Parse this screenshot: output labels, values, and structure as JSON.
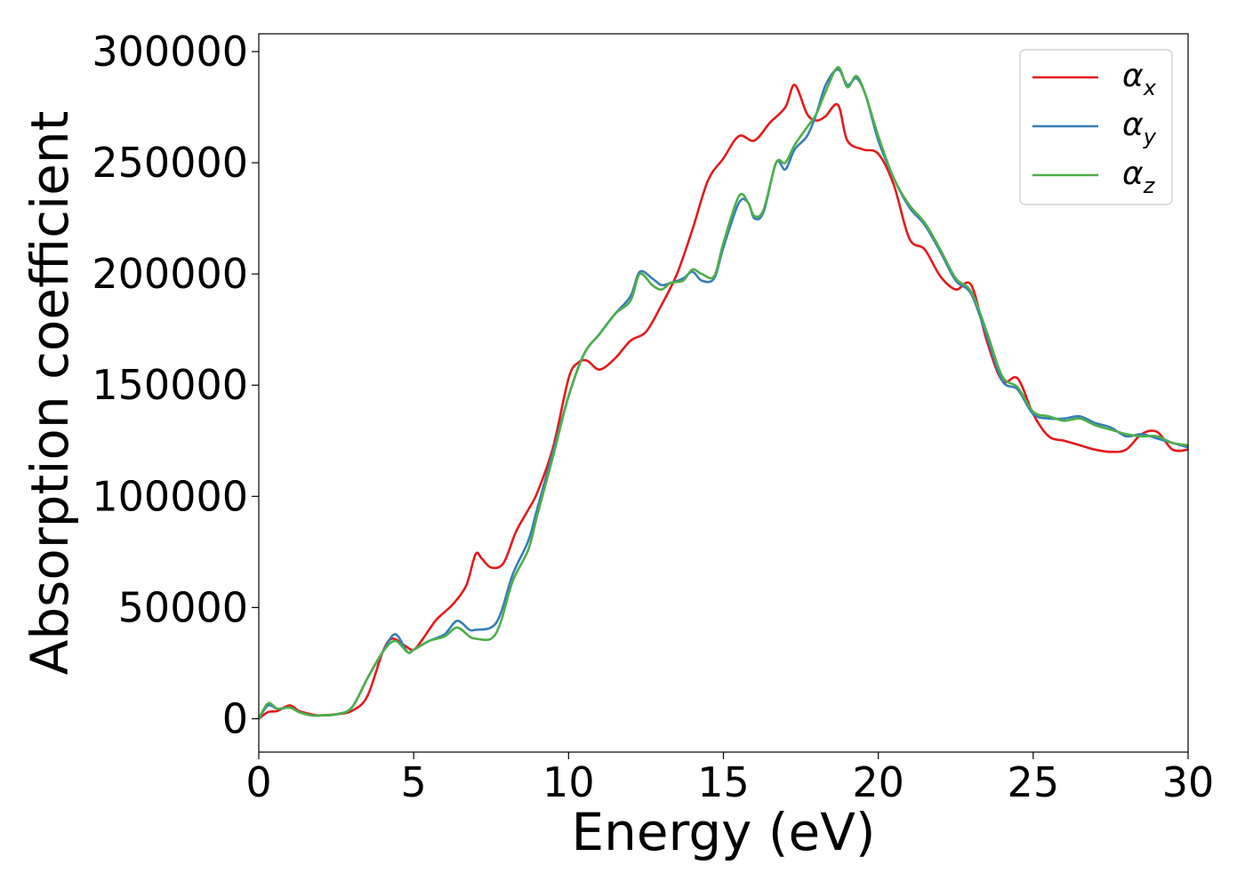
{
  "chart_data": {
    "type": "line",
    "xlabel": "Energy (eV)",
    "ylabel": "Absorption coefficient",
    "xlim": [
      0,
      30
    ],
    "ylim": [
      -15000,
      308000
    ],
    "xticks": [
      0,
      5,
      10,
      15,
      20,
      25,
      30
    ],
    "yticks": [
      0,
      50000,
      100000,
      150000,
      200000,
      250000,
      300000
    ],
    "grid": false,
    "legend_position": "top-right",
    "series": [
      {
        "name": "α",
        "subscript": "x",
        "color": "#e41a1c",
        "x": [
          0,
          0.3,
          0.6,
          1,
          1.3,
          1.7,
          2,
          2.5,
          3,
          3.5,
          4,
          4.3,
          4.7,
          5,
          5.3,
          5.7,
          6,
          6.3,
          6.7,
          7,
          7.2,
          7.5,
          7.9,
          8.3,
          8.7,
          9,
          9.5,
          10,
          10.3,
          10.6,
          11,
          11.5,
          12,
          12.5,
          13,
          13.5,
          14,
          14.5,
          15,
          15.5,
          16,
          16.5,
          17,
          17.3,
          17.7,
          18,
          18.3,
          18.7,
          19,
          19.5,
          20,
          20.5,
          21,
          21.5,
          22,
          22.5,
          23,
          23.5,
          24,
          24.5,
          25,
          25.5,
          26,
          26.5,
          27,
          27.5,
          28,
          28.5,
          29,
          29.5,
          30
        ],
        "y": [
          0,
          3000,
          3500,
          6000,
          3500,
          2000,
          1500,
          2000,
          3500,
          10000,
          30000,
          36000,
          33000,
          31000,
          36000,
          44000,
          48000,
          52000,
          60000,
          74000,
          72000,
          68000,
          70000,
          84000,
          94000,
          102000,
          122000,
          153000,
          160000,
          161000,
          157000,
          162000,
          170000,
          174000,
          186000,
          200000,
          220000,
          242000,
          252000,
          262000,
          260000,
          268000,
          275000,
          285000,
          272000,
          269000,
          271000,
          276000,
          260000,
          256000,
          254000,
          240000,
          216000,
          211000,
          199000,
          193000,
          195000,
          170000,
          152000,
          153000,
          137000,
          127000,
          125000,
          123000,
          121000,
          120000,
          121000,
          128000,
          129000,
          121000,
          121000
        ]
      },
      {
        "name": "α",
        "subscript": "y",
        "color": "#377eb8",
        "x": [
          0,
          0.3,
          0.6,
          1,
          1.3,
          1.7,
          2,
          2.5,
          3,
          3.5,
          4,
          4.4,
          4.8,
          5,
          5.5,
          6,
          6.4,
          6.8,
          7,
          7.5,
          7.8,
          8.2,
          8.7,
          9,
          9.5,
          10,
          10.5,
          11,
          11.5,
          12,
          12.3,
          12.7,
          13,
          13.3,
          13.7,
          14,
          14.3,
          14.7,
          15,
          15.5,
          15.8,
          16,
          16.3,
          16.7,
          17,
          17.3,
          17.7,
          18,
          18.3,
          18.7,
          19,
          19.3,
          19.6,
          20,
          20.5,
          21,
          21.5,
          22,
          22.5,
          23,
          23.5,
          24,
          24.5,
          25,
          25.5,
          26,
          26.5,
          27,
          27.5,
          28,
          28.5,
          29,
          29.5,
          30
        ],
        "y": [
          0,
          6000,
          4500,
          5000,
          3000,
          1500,
          1500,
          2000,
          5000,
          18000,
          30000,
          38000,
          30000,
          31000,
          35000,
          38000,
          44000,
          40000,
          40000,
          41000,
          47000,
          65000,
          80000,
          95000,
          120000,
          145000,
          164000,
          173000,
          182000,
          190000,
          201000,
          198000,
          195000,
          196000,
          198000,
          201000,
          197000,
          198000,
          212000,
          232000,
          232000,
          225000,
          228000,
          250000,
          247000,
          256000,
          262000,
          272000,
          285000,
          292000,
          285000,
          288000,
          280000,
          260000,
          243000,
          230000,
          222000,
          210000,
          197000,
          191000,
          172000,
          152000,
          148000,
          137000,
          135000,
          135000,
          136000,
          133000,
          131000,
          127000,
          128000,
          126000,
          124000,
          122000
        ]
      },
      {
        "name": "α",
        "subscript": "z",
        "color": "#4daf4a",
        "x": [
          0,
          0.3,
          0.6,
          1,
          1.3,
          1.7,
          2,
          2.5,
          3,
          3.5,
          4,
          4.4,
          4.8,
          5,
          5.5,
          6,
          6.4,
          6.8,
          7,
          7.5,
          7.8,
          8.2,
          8.7,
          9,
          9.5,
          10,
          10.5,
          11,
          11.5,
          12,
          12.3,
          12.7,
          13,
          13.3,
          13.7,
          14,
          14.3,
          14.7,
          15,
          15.5,
          15.8,
          16,
          16.3,
          16.7,
          17,
          17.3,
          17.7,
          18,
          18.3,
          18.7,
          19,
          19.3,
          19.6,
          20,
          20.5,
          21,
          21.5,
          22,
          22.5,
          23,
          23.5,
          24,
          24.5,
          25,
          25.5,
          26,
          26.5,
          27,
          27.5,
          28,
          28.5,
          29,
          29.5,
          30
        ],
        "y": [
          0,
          7000,
          4500,
          5000,
          3000,
          1500,
          1500,
          2000,
          5000,
          18000,
          30000,
          35000,
          30000,
          31000,
          35000,
          37000,
          41000,
          37000,
          36000,
          36000,
          43000,
          62000,
          76000,
          92000,
          118000,
          145000,
          164000,
          173000,
          182000,
          188000,
          200000,
          195000,
          193000,
          196000,
          197000,
          202000,
          200000,
          199000,
          214000,
          235000,
          232000,
          226000,
          229000,
          250000,
          250000,
          258000,
          266000,
          272000,
          282000,
          293000,
          284000,
          289000,
          280000,
          262000,
          243000,
          231000,
          223000,
          211000,
          198000,
          192000,
          174000,
          154000,
          149000,
          138000,
          136000,
          134000,
          135000,
          132000,
          130000,
          128000,
          127000,
          127000,
          124000,
          123000
        ]
      }
    ]
  }
}
